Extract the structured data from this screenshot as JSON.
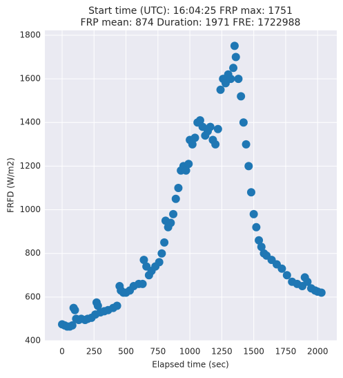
{
  "chart_data": {
    "type": "scatter",
    "title_lines": [
      "Start time (UTC): 16:04:25 FRP max: 1751",
      "FRP mean: 874 Duration: 1971 FRE: 1722988"
    ],
    "xlabel": "Elapsed time (sec)",
    "ylabel": "FRFD (W/m2)",
    "color": "#1f77b4",
    "grid": true,
    "xlim": [
      -135,
      2150
    ],
    "ylim": [
      400,
      1822
    ],
    "xticks": [
      0,
      250,
      500,
      750,
      1000,
      1250,
      1500,
      1750,
      2000
    ],
    "yticks": [
      400,
      600,
      800,
      1000,
      1200,
      1400,
      1600,
      1800
    ],
    "x": [
      0,
      20,
      40,
      60,
      80,
      90,
      100,
      110,
      130,
      150,
      180,
      200,
      230,
      260,
      270,
      280,
      300,
      330,
      360,
      400,
      430,
      450,
      460,
      480,
      500,
      530,
      560,
      600,
      630,
      640,
      660,
      680,
      700,
      730,
      760,
      780,
      800,
      810,
      830,
      850,
      870,
      890,
      910,
      930,
      950,
      970,
      990,
      1000,
      1020,
      1040,
      1060,
      1080,
      1100,
      1120,
      1140,
      1160,
      1180,
      1200,
      1220,
      1240,
      1260,
      1280,
      1300,
      1320,
      1340,
      1350,
      1360,
      1380,
      1400,
      1420,
      1440,
      1460,
      1480,
      1500,
      1520,
      1540,
      1560,
      1580,
      1600,
      1640,
      1680,
      1720,
      1760,
      1800,
      1840,
      1880,
      1900,
      1920,
      1950,
      1980,
      2000,
      2030
    ],
    "y": [
      475,
      470,
      465,
      465,
      470,
      550,
      540,
      500,
      495,
      500,
      495,
      500,
      505,
      520,
      575,
      560,
      530,
      535,
      540,
      550,
      560,
      650,
      630,
      620,
      620,
      630,
      650,
      660,
      660,
      770,
      740,
      700,
      720,
      740,
      760,
      800,
      850,
      950,
      920,
      940,
      980,
      1050,
      1100,
      1180,
      1200,
      1180,
      1210,
      1320,
      1300,
      1330,
      1400,
      1410,
      1380,
      1340,
      1360,
      1380,
      1320,
      1300,
      1370,
      1550,
      1600,
      1580,
      1620,
      1600,
      1650,
      1751,
      1700,
      1600,
      1520,
      1400,
      1300,
      1200,
      1080,
      980,
      920,
      860,
      830,
      800,
      790,
      770,
      750,
      730,
      700,
      670,
      660,
      650,
      690,
      670,
      640,
      630,
      625,
      620
    ]
  }
}
